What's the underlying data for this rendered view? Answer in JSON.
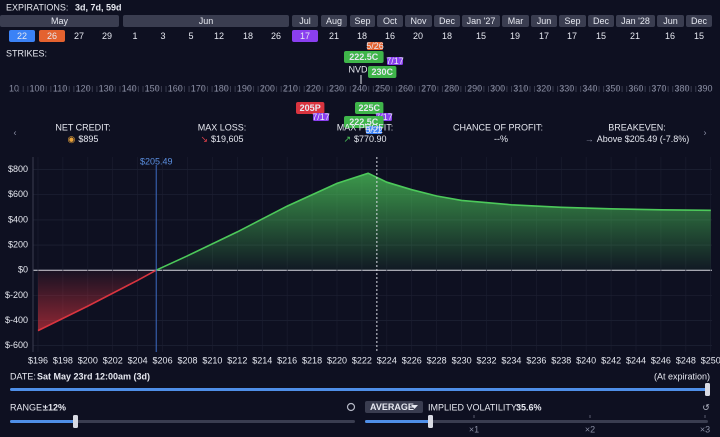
{
  "header": {
    "expirations_label": "EXPIRATIONS:",
    "expirations": "3d, 7d, 59d"
  },
  "months": [
    {
      "label": "May",
      "days": [
        {
          "label": 22,
          "color": "#3b82f6"
        },
        {
          "label": 26,
          "color": "#e4622f"
        },
        {
          "label": 27
        },
        {
          "label": 29
        }
      ]
    },
    {
      "label": "Jun",
      "days": [
        {
          "label": 1
        },
        {
          "label": 3
        },
        {
          "label": 5
        },
        {
          "label": 12
        },
        {
          "label": 18
        },
        {
          "label": 26
        }
      ]
    },
    {
      "label": "Jul",
      "days": [
        {
          "label": 17,
          "color": "#8a3ff0"
        }
      ]
    },
    {
      "label": "Aug",
      "days": [
        {
          "label": 21
        }
      ]
    },
    {
      "label": "Sep",
      "days": [
        {
          "label": 18
        }
      ]
    },
    {
      "label": "Oct",
      "days": [
        {
          "label": 16
        }
      ]
    },
    {
      "label": "Nov",
      "days": [
        {
          "label": 20
        }
      ]
    },
    {
      "label": "Dec",
      "days": [
        {
          "label": 18
        }
      ]
    },
    {
      "label": "Jan '27",
      "days": [
        {
          "label": 15
        }
      ]
    },
    {
      "label": "Mar",
      "days": [
        {
          "label": 19
        }
      ]
    },
    {
      "label": "Jun",
      "days": [
        {
          "label": 17
        }
      ]
    },
    {
      "label": "Sep",
      "days": [
        {
          "label": 17
        }
      ]
    },
    {
      "label": "Dec",
      "days": [
        {
          "label": 15
        }
      ]
    },
    {
      "label": "Jan '28",
      "days": [
        {
          "label": 21
        }
      ]
    },
    {
      "label": "Jun",
      "days": [
        {
          "label": 16
        }
      ]
    },
    {
      "label": "Dec",
      "days": [
        {
          "label": 15
        }
      ]
    }
  ],
  "strikes": {
    "label": "STRIKES:",
    "values": [
      10,
      100,
      110,
      120,
      130,
      140,
      150,
      160,
      170,
      180,
      190,
      200,
      210,
      220,
      230,
      240,
      250,
      260,
      270,
      280,
      290,
      300,
      310,
      320,
      330,
      340,
      350,
      360,
      370,
      380,
      390
    ],
    "underlying": "NVD",
    "tags": [
      {
        "label": "222.5C",
        "date": "5/26",
        "color": "#3fb54a",
        "date_color": "#e4622f"
      },
      {
        "label": "230C",
        "date": "7/17",
        "color": "#3fb54a",
        "date_color": "#8a3ff0"
      },
      {
        "label": "205P",
        "date": "7/17",
        "color": "#d9343f",
        "date_color": "#8a3ff0"
      },
      {
        "label": "225C",
        "date": "7/17",
        "color": "#3fb54a",
        "date_color": "#8a3ff0"
      },
      {
        "label": "222.5C",
        "date": "5/22",
        "color": "#3fb54a",
        "date_color": "#3b82f6"
      }
    ]
  },
  "stats": [
    {
      "label": "NET CREDIT:",
      "icon": "◉",
      "value": "$895"
    },
    {
      "label": "MAX LOSS:",
      "icon": "↘",
      "value": "$19,605"
    },
    {
      "label": "MAX PROFIT:",
      "icon": "↗",
      "value": "$770.90"
    },
    {
      "label": "CHANCE OF PROFIT:",
      "icon": "",
      "value": "--%"
    },
    {
      "label": "BREAKEVEN:",
      "icon": "→",
      "value": "Above $205.49 (-7.8%)"
    }
  ],
  "chart_data": {
    "type": "line",
    "x": [
      196,
      200,
      204,
      205.49,
      208,
      212,
      216,
      220,
      222.5,
      224,
      226,
      228,
      230,
      234,
      238,
      242,
      246,
      250
    ],
    "values": [
      -480,
      -285,
      -80,
      0,
      115,
      305,
      510,
      690,
      770.9,
      700,
      640,
      590,
      555,
      520,
      500,
      488,
      480,
      476
    ],
    "color": "#4cc95a",
    "loss_color": "#d9343f",
    "xlim": [
      195.6,
      250.1
    ],
    "ylim": [
      -650,
      900
    ],
    "xticks": [
      {
        "value": 196,
        "label": "$196"
      },
      {
        "value": 198,
        "label": "$198"
      },
      {
        "value": 200,
        "label": "$200"
      },
      {
        "value": 202,
        "label": "$202"
      },
      {
        "value": 204,
        "label": "$204"
      },
      {
        "value": 206,
        "label": "$206"
      },
      {
        "value": 208,
        "label": "$208"
      },
      {
        "value": 210,
        "label": "$210"
      },
      {
        "value": 212,
        "label": "$212"
      },
      {
        "value": 214,
        "label": "$214"
      },
      {
        "value": 216,
        "label": "$216"
      },
      {
        "value": 218,
        "label": "$218"
      },
      {
        "value": 220,
        "label": "$220"
      },
      {
        "value": 222,
        "label": "$222"
      },
      {
        "value": 224,
        "label": "$224"
      },
      {
        "value": 226,
        "label": "$226"
      },
      {
        "value": 228,
        "label": "$228"
      },
      {
        "value": 230,
        "label": "$230"
      },
      {
        "value": 232,
        "label": "$232"
      },
      {
        "value": 234,
        "label": "$234"
      },
      {
        "value": 236,
        "label": "$236"
      },
      {
        "value": 238,
        "label": "$238"
      },
      {
        "value": 240,
        "label": "$240"
      },
      {
        "value": 242,
        "label": "$242"
      },
      {
        "value": 244,
        "label": "$244"
      },
      {
        "value": 246,
        "label": "$246"
      },
      {
        "value": 248,
        "label": "$248"
      },
      {
        "value": 250,
        "label": "$250"
      }
    ],
    "yticks": [
      {
        "value": 800,
        "label": "$800"
      },
      {
        "value": 600,
        "label": "$600"
      },
      {
        "value": 400,
        "label": "$400"
      },
      {
        "value": 200,
        "label": "$200"
      },
      {
        "value": 0,
        "label": "$0"
      },
      {
        "value": -200,
        "label": "$-200"
      },
      {
        "value": -400,
        "label": "$-400"
      },
      {
        "value": -600,
        "label": "$-600"
      }
    ],
    "grid": true,
    "breakeven": {
      "value": 205.49,
      "label": "$205.49"
    },
    "current_price": 223.2
  },
  "controls": {
    "date_label": "DATE:",
    "date": "Sat May 23rd 12:00am (3d)",
    "at_expiration": "(At expiration)",
    "range_label": "RANGE:",
    "range": "±12%",
    "average": "AVERAGE",
    "iv_label": "IMPLIED VOLATILITY:",
    "iv": "35.6%",
    "multipliers": [
      "×1",
      "×2",
      "×3"
    ]
  }
}
